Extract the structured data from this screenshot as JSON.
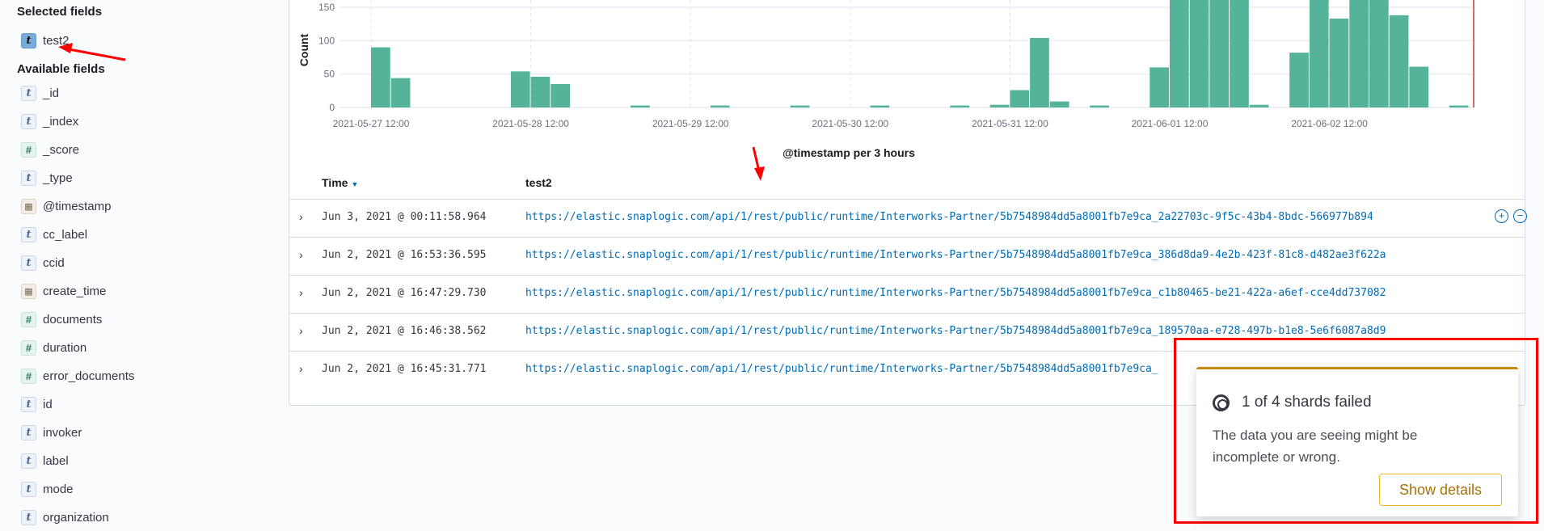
{
  "sidebar": {
    "selected_heading": "Selected fields",
    "selected": [
      {
        "name": "test2",
        "type": "t"
      }
    ],
    "available_heading": "Available fields",
    "available": [
      {
        "name": "_id",
        "type": "t"
      },
      {
        "name": "_index",
        "type": "t"
      },
      {
        "name": "_score",
        "type": "#"
      },
      {
        "name": "_type",
        "type": "t"
      },
      {
        "name": "@timestamp",
        "type": "date"
      },
      {
        "name": "cc_label",
        "type": "t"
      },
      {
        "name": "ccid",
        "type": "t"
      },
      {
        "name": "create_time",
        "type": "date"
      },
      {
        "name": "documents",
        "type": "#"
      },
      {
        "name": "duration",
        "type": "#"
      },
      {
        "name": "error_documents",
        "type": "#"
      },
      {
        "name": "id",
        "type": "t"
      },
      {
        "name": "invoker",
        "type": "t"
      },
      {
        "name": "label",
        "type": "t"
      },
      {
        "name": "mode",
        "type": "t"
      },
      {
        "name": "organization",
        "type": "t"
      }
    ]
  },
  "chart_data": {
    "type": "bar",
    "ylabel": "Count",
    "xlabel": "@timestamp per 3 hours",
    "bar_color": "#54b399",
    "yticks": [
      0,
      50,
      100,
      150
    ],
    "xtick_labels": [
      "2021-05-27 12:00",
      "2021-05-28 12:00",
      "2021-05-29 12:00",
      "2021-05-30 12:00",
      "2021-05-31 12:00",
      "2021-06-01 12:00",
      "2021-06-02 12:00"
    ],
    "first_bin": "2021-05-27 12:00",
    "interval": "3 hours",
    "bins": [
      {
        "t": "2021-05-27 12:00",
        "v": 90
      },
      {
        "t": "2021-05-27 15:00",
        "v": 44
      },
      {
        "t": "2021-05-28 09:00",
        "v": 54
      },
      {
        "t": "2021-05-28 12:00",
        "v": 46
      },
      {
        "t": "2021-05-28 15:00",
        "v": 35
      },
      {
        "t": "2021-05-29 03:00",
        "v": 3
      },
      {
        "t": "2021-05-29 15:00",
        "v": 3
      },
      {
        "t": "2021-05-30 03:00",
        "v": 3
      },
      {
        "t": "2021-05-30 15:00",
        "v": 3
      },
      {
        "t": "2021-05-31 03:00",
        "v": 3
      },
      {
        "t": "2021-05-31 09:00",
        "v": 4
      },
      {
        "t": "2021-05-31 12:00",
        "v": 26
      },
      {
        "t": "2021-05-31 15:00",
        "v": 104
      },
      {
        "t": "2021-05-31 18:00",
        "v": 9
      },
      {
        "t": "2021-06-01 00:00",
        "v": 3
      },
      {
        "t": "2021-06-01 09:00",
        "v": 60
      },
      {
        "t": "2021-06-01 12:00",
        "v": 180
      },
      {
        "t": "2021-06-01 15:00",
        "v": 180
      },
      {
        "t": "2021-06-01 18:00",
        "v": 180
      },
      {
        "t": "2021-06-01 21:00",
        "v": 180
      },
      {
        "t": "2021-06-02 00:00",
        "v": 4
      },
      {
        "t": "2021-06-02 06:00",
        "v": 82
      },
      {
        "t": "2021-06-02 09:00",
        "v": 180
      },
      {
        "t": "2021-06-02 12:00",
        "v": 133
      },
      {
        "t": "2021-06-02 15:00",
        "v": 180
      },
      {
        "t": "2021-06-02 18:00",
        "v": 180
      },
      {
        "t": "2021-06-02 21:00",
        "v": 138
      },
      {
        "t": "2021-06-03 00:00",
        "v": 61
      },
      {
        "t": "2021-06-03 06:00",
        "v": 3
      }
    ],
    "grid": true
  },
  "table": {
    "headers": [
      "Time",
      "test2"
    ],
    "rows": [
      {
        "time": "Jun 3, 2021 @ 00:11:58.964",
        "url": "https://elastic.snaplogic.com/api/1/rest/public/runtime/Interworks-Partner/5b7548984dd5a8001fb7e9ca_2a22703c-9f5c-43b4-8bdc-566977b894"
      },
      {
        "time": "Jun 2, 2021 @ 16:53:36.595",
        "url": "https://elastic.snaplogic.com/api/1/rest/public/runtime/Interworks-Partner/5b7548984dd5a8001fb7e9ca_386d8da9-4e2b-423f-81c8-d482ae3f622a"
      },
      {
        "time": "Jun 2, 2021 @ 16:47:29.730",
        "url": "https://elastic.snaplogic.com/api/1/rest/public/runtime/Interworks-Partner/5b7548984dd5a8001fb7e9ca_c1b80465-be21-422a-a6ef-cce4dd737082"
      },
      {
        "time": "Jun 2, 2021 @ 16:46:38.562",
        "url": "https://elastic.snaplogic.com/api/1/rest/public/runtime/Interworks-Partner/5b7548984dd5a8001fb7e9ca_189570aa-e728-497b-b1e8-5e6f6087a8d9"
      },
      {
        "time": "Jun 2, 2021 @ 16:45:31.771",
        "url": "https://elastic.snaplogic.com/api/1/rest/public/runtime/Interworks-Partner/5b7548984dd5a8001fb7e9ca_"
      }
    ]
  },
  "toast": {
    "title": "1 of 4 shards failed",
    "body": "The data you are seeing might be incomplete or wrong.",
    "button": "Show details",
    "accent": "#c38a0d"
  },
  "colors": {
    "link": "#006bb4",
    "annotation": "#ff0000"
  }
}
